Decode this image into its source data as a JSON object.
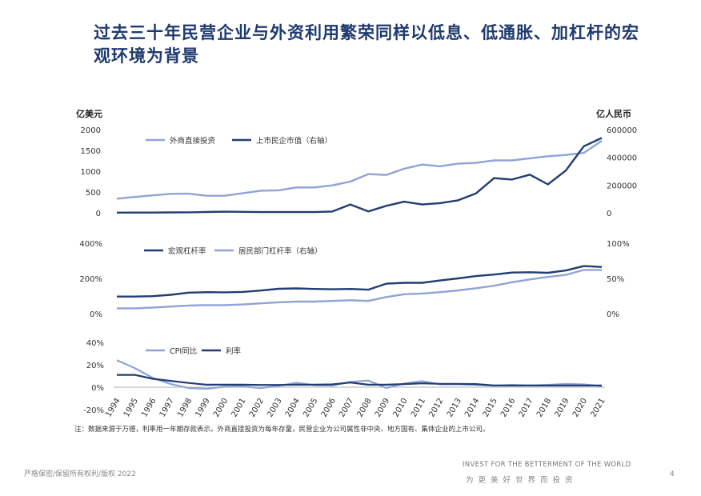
{
  "title": "过去三十年民营企业与外资利用繁荣同样以低息、低通胀、加杠杆的宏观环境为背景",
  "note": "注：数据来源于万德，利率用一年期存款表示。外商直接投资为每年存量，民营企业为公司属性非中央、地方国有、集体企业的上市公司。",
  "footer": {
    "copyright": "严格保密/保留所有权利/版权 2022",
    "brand_en": "INVEST FOR THE BETTERMENT OF THE WORLD",
    "brand_cn": "为更美好世界而投资",
    "page": "4"
  },
  "colors": {
    "light": "#8fa3d6",
    "dark": "#223d72"
  },
  "chart_data": [
    {
      "type": "line",
      "unit_left": "亿美元",
      "unit_right": "亿人民币",
      "x": [
        "1994",
        "1995",
        "1996",
        "1997",
        "1998",
        "1999",
        "2000",
        "2001",
        "2002",
        "2003",
        "2004",
        "2005",
        "2006",
        "2007",
        "2008",
        "2009",
        "2010",
        "2011",
        "2012",
        "2013",
        "2014",
        "2015",
        "2016",
        "2017",
        "2018",
        "2019",
        "2020",
        "2021"
      ],
      "ylim_left": [
        0,
        2000
      ],
      "yticks_left": [
        "2000",
        "1500",
        "1000",
        "500",
        "0"
      ],
      "ylim_right": [
        0,
        600000
      ],
      "yticks_right": [
        "600000",
        "400000",
        "200000",
        "0"
      ],
      "series": [
        {
          "name": "外商直接投资",
          "axis": "left",
          "color": "#8fa3d6",
          "values": [
            340,
            380,
            420,
            455,
            460,
            410,
            410,
            470,
            530,
            540,
            610,
            610,
            660,
            750,
            930,
            910,
            1060,
            1160,
            1120,
            1180,
            1200,
            1260,
            1260,
            1310,
            1360,
            1390,
            1440,
            1730
          ]
        },
        {
          "name": "上市民企市值（右轴）",
          "axis": "right",
          "color": "#223d72",
          "values": [
            1000,
            1500,
            2000,
            3000,
            3500,
            6000,
            8000,
            7000,
            5000,
            5000,
            5000,
            5000,
            9000,
            60000,
            10000,
            50000,
            80000,
            60000,
            70000,
            90000,
            140000,
            250000,
            240000,
            275000,
            205000,
            305000,
            480000,
            540000
          ]
        }
      ]
    },
    {
      "type": "line",
      "x": [
        "1994",
        "1995",
        "1996",
        "1997",
        "1998",
        "1999",
        "2000",
        "2001",
        "2002",
        "2003",
        "2004",
        "2005",
        "2006",
        "2007",
        "2008",
        "2009",
        "2010",
        "2011",
        "2012",
        "2013",
        "2014",
        "2015",
        "2016",
        "2017",
        "2018",
        "2019",
        "2020",
        "2021"
      ],
      "ylim_left": [
        0,
        400
      ],
      "yticks_left": [
        "400%",
        "200%",
        "0%"
      ],
      "ylim_right": [
        0,
        100
      ],
      "yticks_right": [
        "100%",
        "50%",
        "0%"
      ],
      "series": [
        {
          "name": "宏观杠杆率",
          "axis": "left",
          "color": "#223d72",
          "values": [
            97,
            97,
            99,
            107,
            119,
            122,
            121,
            123,
            131,
            141,
            143,
            140,
            138,
            140,
            136,
            170,
            175,
            175,
            188,
            200,
            213,
            222,
            233,
            235,
            232,
            245,
            270,
            265
          ]
        },
        {
          "name": "居民部门杠杆率（右轴）",
          "axis": "right",
          "color": "#8fa3d6",
          "values": [
            7.5,
            7.5,
            8.5,
            10,
            11.5,
            12,
            12,
            13,
            14.5,
            16,
            17,
            17,
            18,
            19,
            18,
            23.5,
            27.5,
            28.5,
            30.5,
            33,
            36,
            39.5,
            44.5,
            48.5,
            52,
            55,
            62,
            62
          ]
        }
      ]
    },
    {
      "type": "line",
      "x": [
        "1994",
        "1995",
        "1996",
        "1997",
        "1998",
        "1999",
        "2000",
        "2001",
        "2002",
        "2003",
        "2004",
        "2005",
        "2006",
        "2007",
        "2008",
        "2009",
        "2010",
        "2011",
        "2012",
        "2013",
        "2014",
        "2015",
        "2016",
        "2017",
        "2018",
        "2019",
        "2020",
        "2021"
      ],
      "ylim": [
        -20,
        40
      ],
      "yticks": [
        "40%",
        "20%",
        "0%",
        "-20%"
      ],
      "series": [
        {
          "name": "CPI同比",
          "color": "#8fa3d6",
          "values": [
            24.1,
            17.1,
            8.3,
            2.8,
            -0.8,
            -1.4,
            0.4,
            0.7,
            -0.8,
            1.2,
            3.9,
            1.8,
            1.5,
            4.8,
            5.9,
            -0.7,
            3.3,
            5.4,
            2.6,
            2.6,
            2.0,
            1.4,
            2.0,
            1.6,
            2.1,
            2.9,
            2.5,
            0.9
          ]
        },
        {
          "name": "利率",
          "color": "#223d72",
          "values": [
            10.98,
            10.98,
            7.47,
            5.67,
            3.78,
            2.25,
            2.25,
            2.25,
            1.98,
            1.98,
            2.25,
            2.25,
            2.52,
            4.14,
            2.25,
            2.25,
            2.75,
            3.5,
            3.0,
            3.0,
            2.75,
            1.5,
            1.5,
            1.5,
            1.5,
            1.5,
            1.5,
            1.5
          ]
        }
      ]
    }
  ]
}
